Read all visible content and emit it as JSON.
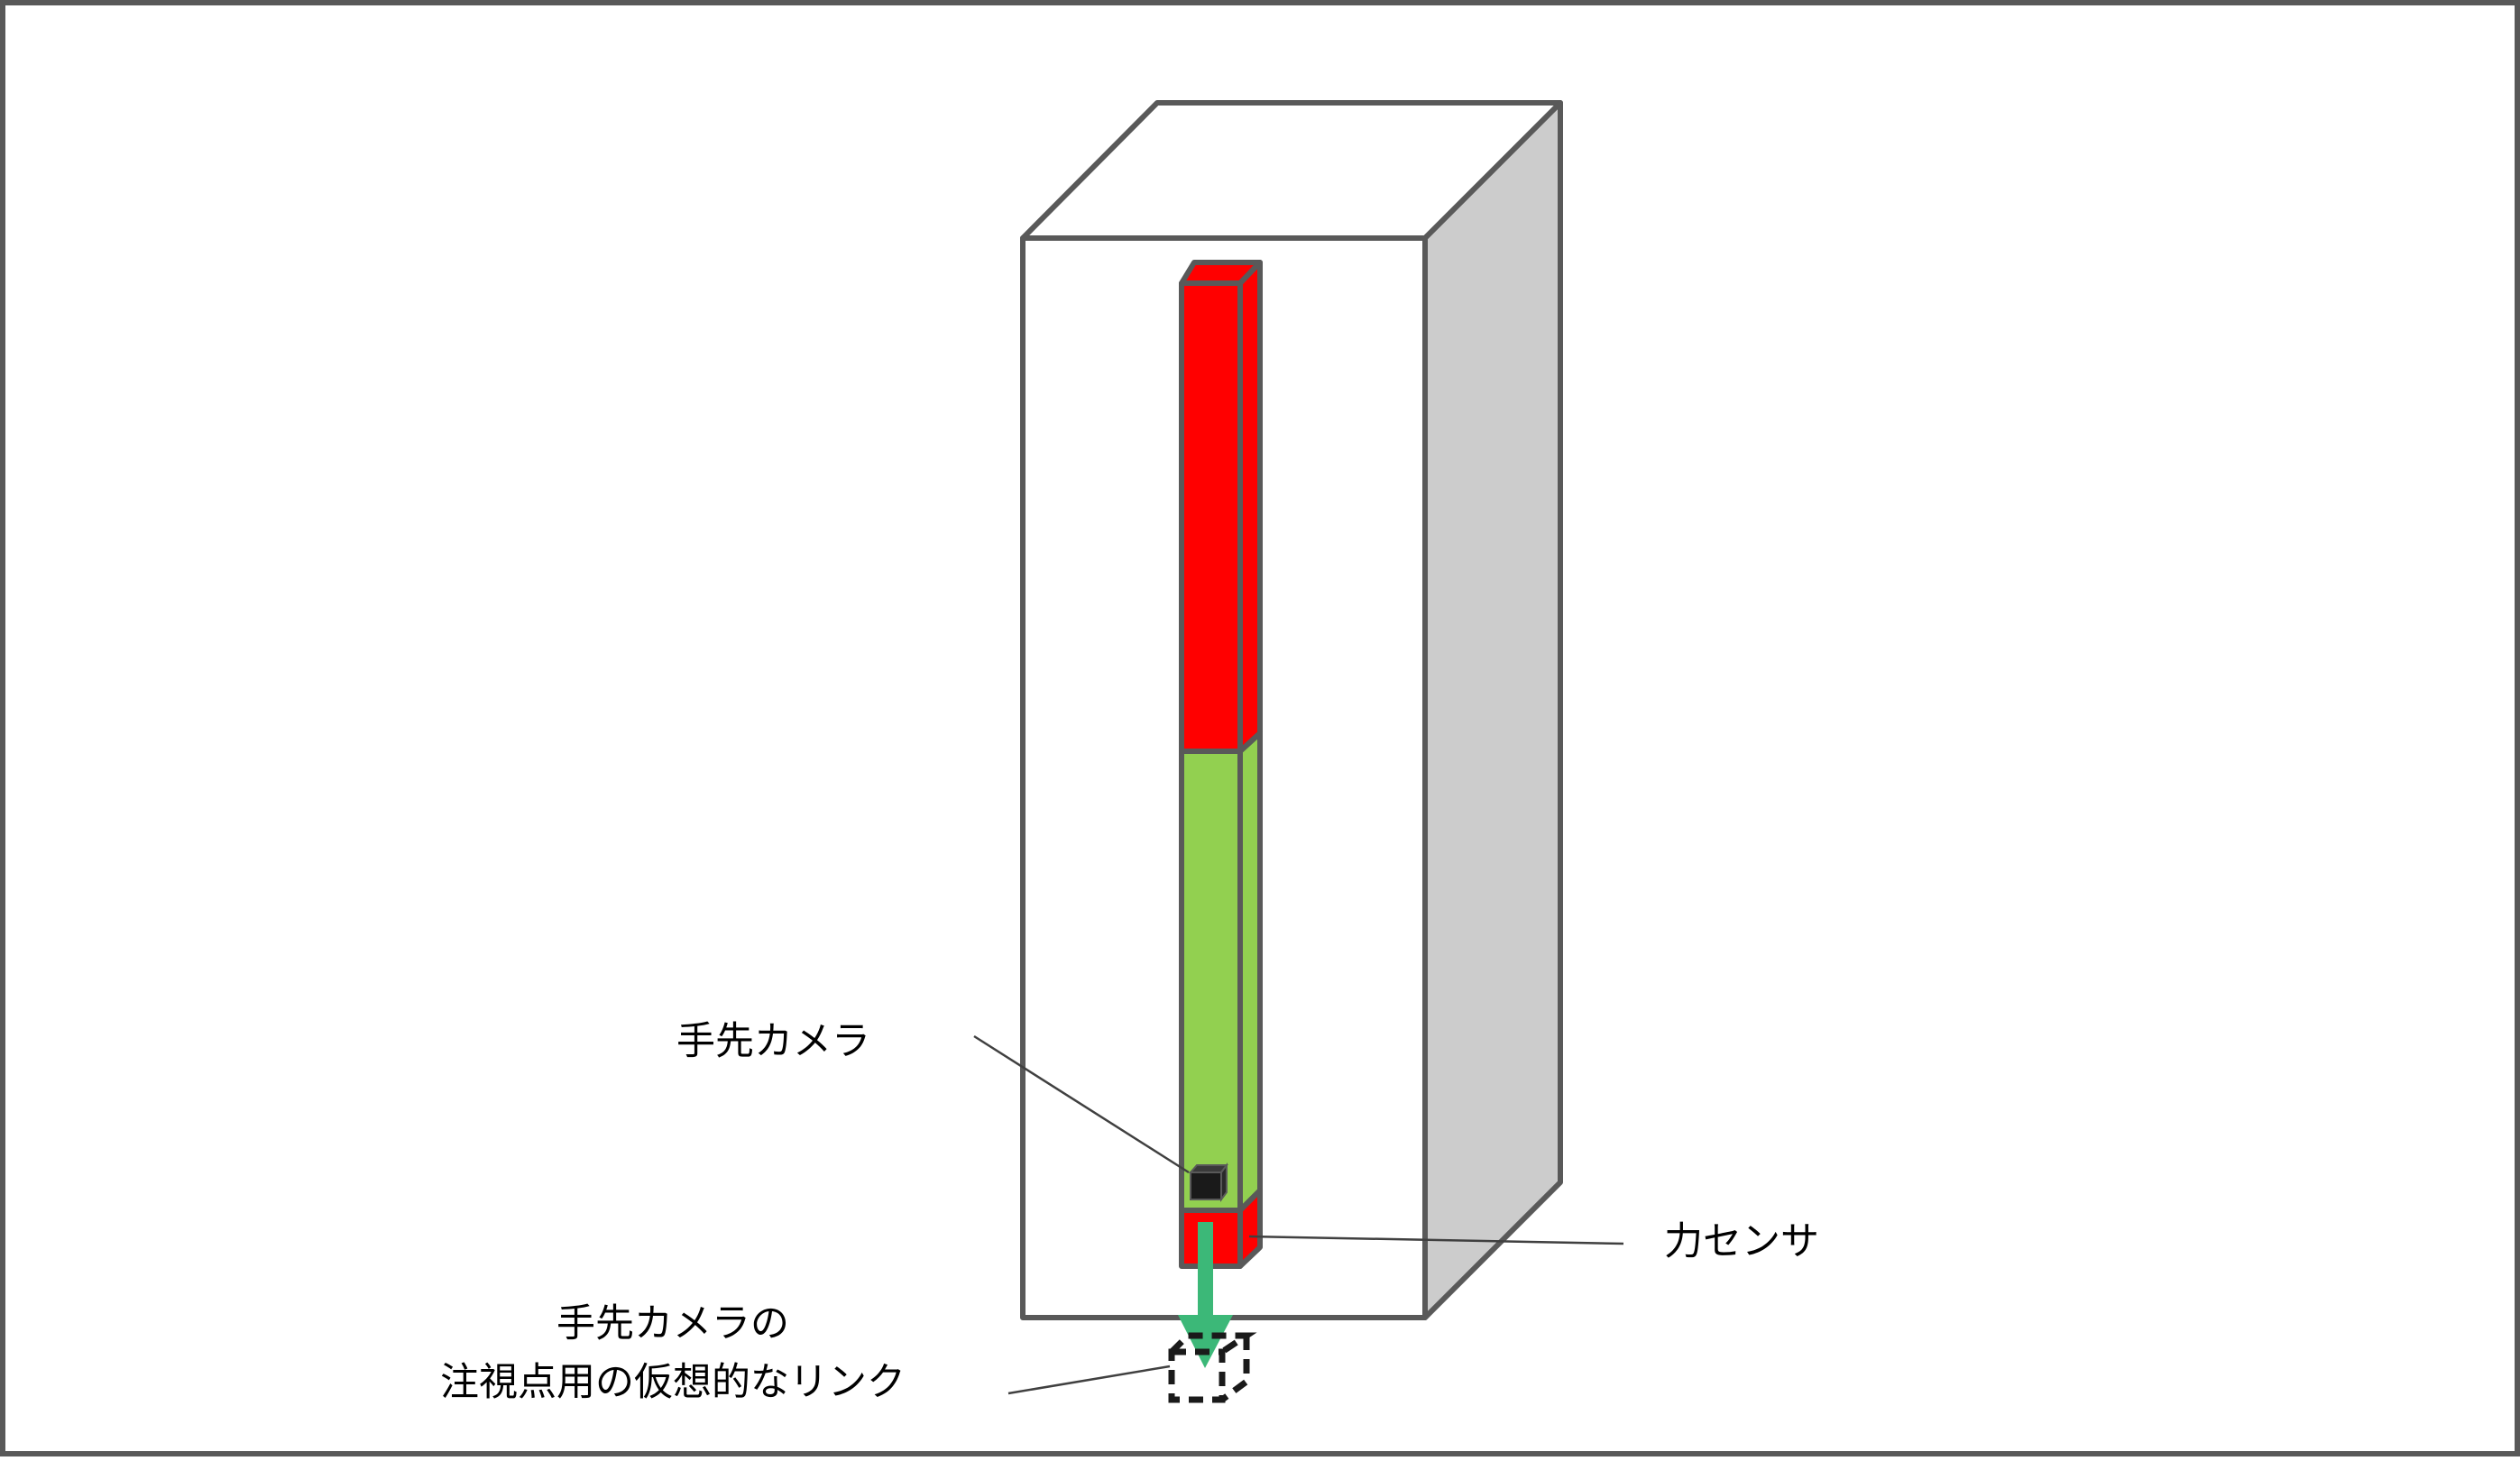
{
  "labels": {
    "hand_camera": "手先カメラ",
    "force_sensor": "力センサ",
    "virtual_link_line1": "手先カメラの",
    "virtual_link_line2": "注視点用の仮想的なリンク"
  },
  "colors": {
    "frame": "#595959",
    "background": "#ffffff",
    "box_side": "#cccccc",
    "link_red": "#ff0000",
    "link_green": "#92d050",
    "camera": "#1a1a1a",
    "arrow": "#3cb878"
  }
}
